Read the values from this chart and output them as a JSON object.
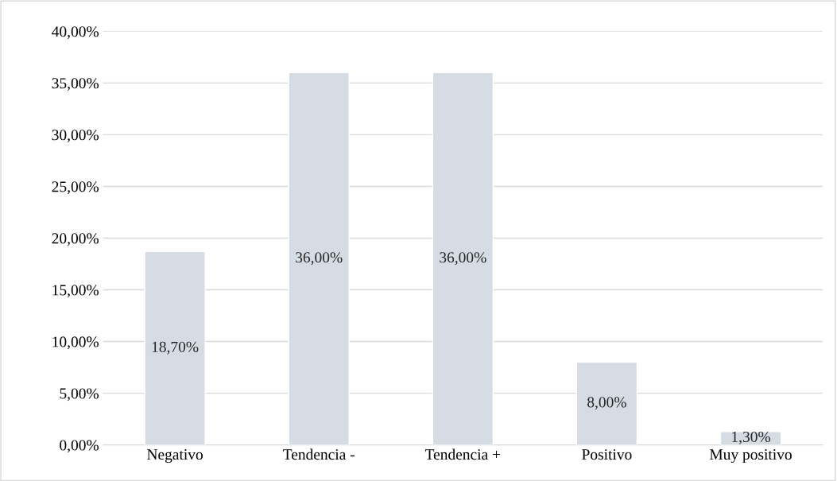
{
  "chart_data": {
    "type": "bar",
    "categories": [
      "Negativo",
      "Tendencia -",
      "Tendencia +",
      "Positivo",
      "Muy positivo"
    ],
    "values": [
      18.7,
      36.0,
      36.0,
      8.0,
      1.3
    ],
    "value_labels": [
      "18,70%",
      "36,00%",
      "36,00%",
      "8,00%",
      "1,30%"
    ],
    "color": "#d6dce4",
    "ylim": [
      0,
      40
    ],
    "yticks": [
      {
        "value": 0,
        "label": "0,00%"
      },
      {
        "value": 5,
        "label": "5,00%"
      },
      {
        "value": 10,
        "label": "10,00%"
      },
      {
        "value": 15,
        "label": "15,00%"
      },
      {
        "value": 20,
        "label": "20,00%"
      },
      {
        "value": 25,
        "label": "25,00%"
      },
      {
        "value": 30,
        "label": "30,00%"
      },
      {
        "value": 35,
        "label": "35,00%"
      },
      {
        "value": 40,
        "label": "40,00%"
      }
    ],
    "grid": "y"
  }
}
